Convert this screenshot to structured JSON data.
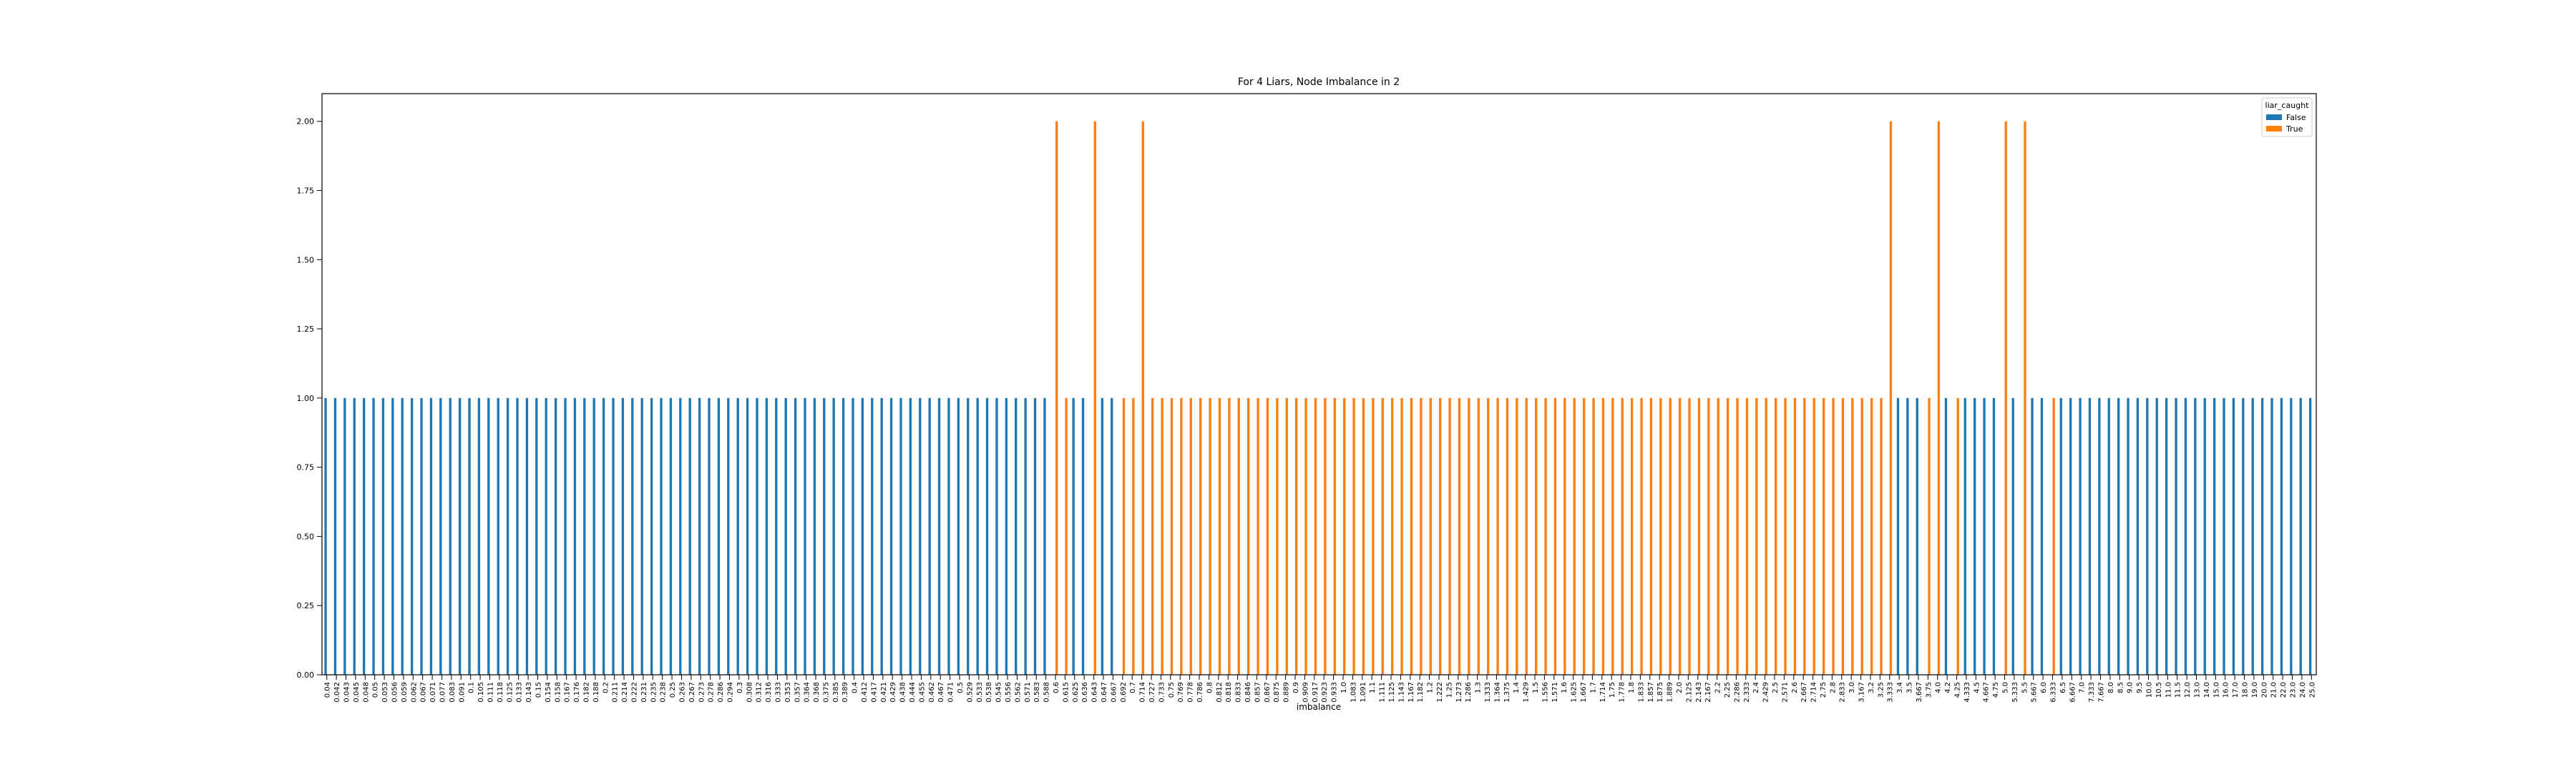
{
  "chart_data": {
    "type": "bar",
    "title": "For 4 Liars, Node Imbalance in 2",
    "x_label": "imbalance",
    "legend_title": "liar_caught",
    "legend": "upper right",
    "categories": [
      "0.04",
      "0.042",
      "0.043",
      "0.045",
      "0.048",
      "0.05",
      "0.053",
      "0.056",
      "0.059",
      "0.062",
      "0.067",
      "0.071",
      "0.077",
      "0.083",
      "0.091",
      "0.1",
      "0.105",
      "0.111",
      "0.118",
      "0.125",
      "0.133",
      "0.143",
      "0.15",
      "0.154",
      "0.158",
      "0.167",
      "0.176",
      "0.182",
      "0.188",
      "0.2",
      "0.211",
      "0.214",
      "0.222",
      "0.231",
      "0.235",
      "0.238",
      "0.25",
      "0.263",
      "0.267",
      "0.273",
      "0.278",
      "0.286",
      "0.294",
      "0.3",
      "0.308",
      "0.312",
      "0.316",
      "0.333",
      "0.353",
      "0.357",
      "0.364",
      "0.368",
      "0.375",
      "0.385",
      "0.389",
      "0.4",
      "0.412",
      "0.417",
      "0.421",
      "0.429",
      "0.438",
      "0.444",
      "0.455",
      "0.462",
      "0.467",
      "0.471",
      "0.5",
      "0.529",
      "0.533",
      "0.538",
      "0.545",
      "0.556",
      "0.562",
      "0.571",
      "0.583",
      "0.588",
      "0.6",
      "0.615",
      "0.625",
      "0.636",
      "0.643",
      "0.647",
      "0.667",
      "0.692",
      "0.7",
      "0.714",
      "0.727",
      "0.733",
      "0.75",
      "0.769",
      "0.778",
      "0.786",
      "0.8",
      "0.812",
      "0.818",
      "0.833",
      "0.846",
      "0.857",
      "0.867",
      "0.875",
      "0.889",
      "0.9",
      "0.909",
      "0.917",
      "0.923",
      "0.933",
      "1.0",
      "1.083",
      "1.091",
      "1.1",
      "1.111",
      "1.125",
      "1.143",
      "1.167",
      "1.182",
      "1.2",
      "1.222",
      "1.25",
      "1.273",
      "1.286",
      "1.3",
      "1.333",
      "1.364",
      "1.375",
      "1.4",
      "1.429",
      "1.5",
      "1.556",
      "1.571",
      "1.6",
      "1.625",
      "1.667",
      "1.7",
      "1.714",
      "1.75",
      "1.778",
      "1.8",
      "1.833",
      "1.857",
      "1.875",
      "1.889",
      "2.0",
      "2.125",
      "2.143",
      "2.167",
      "2.2",
      "2.25",
      "2.286",
      "2.333",
      "2.4",
      "2.429",
      "2.5",
      "2.571",
      "2.6",
      "2.667",
      "2.714",
      "2.75",
      "2.8",
      "2.833",
      "3.0",
      "3.167",
      "3.2",
      "3.25",
      "3.333",
      "3.4",
      "3.5",
      "3.667",
      "3.75",
      "4.0",
      "4.2",
      "4.25",
      "4.333",
      "4.5",
      "4.667",
      "4.75",
      "5.0",
      "5.333",
      "5.5",
      "5.667",
      "6.0",
      "6.333",
      "6.5",
      "6.667",
      "7.0",
      "7.333",
      "7.667",
      "8.0",
      "8.5",
      "9.0",
      "9.5",
      "10.0",
      "10.5",
      "11.0",
      "11.5",
      "12.0",
      "13.0",
      "14.0",
      "15.0",
      "16.0",
      "17.0",
      "18.0",
      "19.0",
      "20.0",
      "21.0",
      "22.0",
      "23.0",
      "24.0",
      "25.0"
    ],
    "series": [
      {
        "name": "False",
        "color": "#1f77b4",
        "values": [
          1,
          1,
          1,
          1,
          1,
          1,
          1,
          1,
          1,
          1,
          1,
          1,
          1,
          1,
          1,
          1,
          1,
          1,
          1,
          1,
          1,
          1,
          1,
          1,
          1,
          1,
          1,
          1,
          1,
          1,
          1,
          1,
          1,
          1,
          1,
          1,
          1,
          1,
          1,
          1,
          1,
          1,
          1,
          1,
          1,
          1,
          1,
          1,
          1,
          1,
          1,
          1,
          1,
          1,
          1,
          1,
          1,
          1,
          1,
          1,
          1,
          1,
          1,
          1,
          1,
          1,
          1,
          1,
          1,
          1,
          1,
          1,
          1,
          1,
          1,
          1,
          null,
          null,
          1,
          1,
          null,
          1,
          1,
          null,
          null,
          null,
          null,
          null,
          null,
          null,
          null,
          null,
          null,
          null,
          null,
          null,
          null,
          null,
          null,
          null,
          null,
          null,
          null,
          null,
          null,
          null,
          null,
          null,
          null,
          null,
          null,
          null,
          null,
          null,
          null,
          null,
          null,
          null,
          null,
          null,
          null,
          null,
          null,
          null,
          null,
          null,
          null,
          null,
          null,
          null,
          null,
          null,
          null,
          null,
          null,
          null,
          null,
          null,
          null,
          null,
          null,
          null,
          null,
          null,
          null,
          null,
          null,
          null,
          null,
          null,
          null,
          null,
          null,
          null,
          null,
          null,
          null,
          null,
          null,
          null,
          null,
          null,
          null,
          null,
          1,
          1,
          1,
          null,
          null,
          1,
          null,
          1,
          1,
          1,
          1,
          null,
          1,
          null,
          1,
          1,
          null,
          1,
          1,
          1,
          1,
          1,
          1,
          1,
          1,
          1,
          1,
          1,
          1,
          1,
          1,
          1,
          1,
          1,
          1,
          1,
          1,
          1,
          1,
          1,
          1,
          1,
          1,
          1
        ]
      },
      {
        "name": "True",
        "color": "#ff7f0e",
        "values": [
          null,
          null,
          null,
          null,
          null,
          null,
          null,
          null,
          null,
          null,
          null,
          null,
          null,
          null,
          null,
          null,
          null,
          null,
          null,
          null,
          null,
          null,
          null,
          null,
          null,
          null,
          null,
          null,
          null,
          null,
          null,
          null,
          null,
          null,
          null,
          null,
          null,
          null,
          null,
          null,
          null,
          null,
          null,
          null,
          null,
          null,
          null,
          null,
          null,
          null,
          null,
          null,
          null,
          null,
          null,
          null,
          null,
          null,
          null,
          null,
          null,
          null,
          null,
          null,
          null,
          null,
          null,
          null,
          null,
          null,
          null,
          null,
          null,
          null,
          null,
          null,
          2,
          1,
          null,
          null,
          2,
          null,
          null,
          1,
          1,
          2,
          1,
          1,
          1,
          1,
          1,
          1,
          1,
          1,
          1,
          1,
          1,
          1,
          1,
          1,
          1,
          1,
          1,
          1,
          1,
          1,
          1,
          1,
          1,
          1,
          1,
          1,
          1,
          1,
          1,
          1,
          1,
          1,
          1,
          1,
          1,
          1,
          1,
          1,
          1,
          1,
          1,
          1,
          1,
          1,
          1,
          1,
          1,
          1,
          1,
          1,
          1,
          1,
          1,
          1,
          1,
          1,
          1,
          1,
          1,
          1,
          1,
          1,
          1,
          1,
          1,
          1,
          1,
          1,
          1,
          1,
          1,
          1,
          1,
          1,
          1,
          1,
          1,
          2,
          null,
          null,
          null,
          1,
          2,
          null,
          1,
          null,
          null,
          null,
          null,
          2,
          null,
          2,
          null,
          null,
          1,
          null,
          null,
          null,
          null,
          null,
          null,
          null,
          null,
          null,
          null,
          null,
          null,
          null,
          null,
          null,
          null,
          null,
          null,
          null,
          null,
          null,
          null,
          null,
          null,
          null,
          null,
          null
        ]
      }
    ],
    "ylim": [
      0,
      2.1
    ],
    "yticks": [
      {
        "value": 0,
        "label": "0.00"
      },
      {
        "value": 0.25,
        "label": "0.25"
      },
      {
        "value": 0.5,
        "label": "0.50"
      },
      {
        "value": 0.75,
        "label": "0.75"
      },
      {
        "value": 1,
        "label": "1.00"
      },
      {
        "value": 1.25,
        "label": "1.25"
      },
      {
        "value": 1.5,
        "label": "1.50"
      },
      {
        "value": 1.75,
        "label": "1.75"
      },
      {
        "value": 2,
        "label": "2.00"
      }
    ],
    "grid": false
  }
}
